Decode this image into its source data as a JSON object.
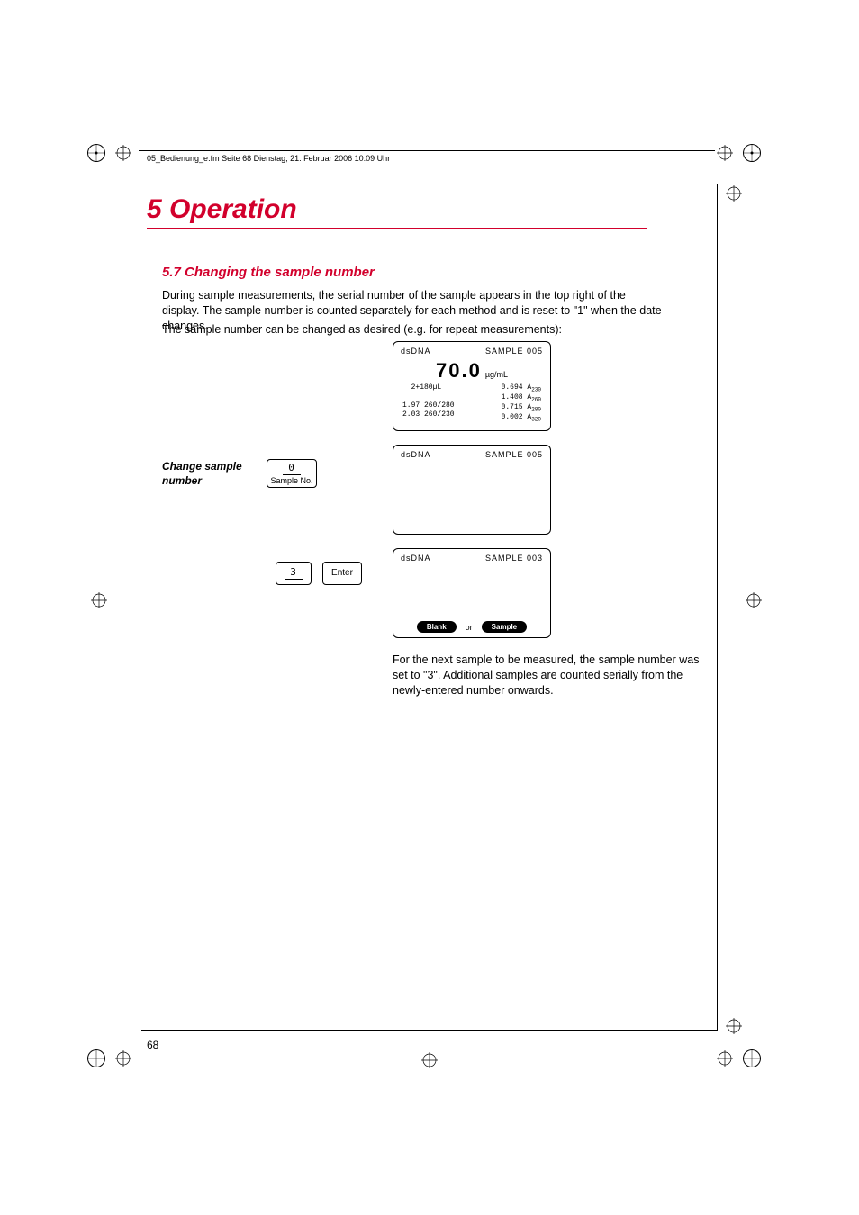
{
  "header_line": "05_Bedienung_e.fm  Seite 68  Dienstag, 21. Februar 2006  10:09 Uhr",
  "chapter_title": "5 Operation",
  "section_title": "5.7  Changing the sample number",
  "para1": "During sample measurements, the serial number of the sample appears in the top right of the display. The sample number is counted separately for each method and is reset to \"1\" when the date changes.",
  "para2": "The sample number can be changed as desired (e.g. for repeat measurements):",
  "margin_label": "Change sample number",
  "key_sample_no_digit": "0",
  "key_sample_no_label": "Sample No.",
  "key_3_digit": "3",
  "key_enter_label": "Enter",
  "screen1": {
    "method": "dsDNA",
    "sample": "SAMPLE 005",
    "value": "70.0",
    "unit": "µg/mL",
    "left_col": "  2+180µL\n\n1.97 260/280\n2.03 260/230",
    "right_lines": [
      {
        "v": "0.694",
        "a": "A",
        "s": "230"
      },
      {
        "v": "1.408",
        "a": "A",
        "s": "260"
      },
      {
        "v": "0.715",
        "a": "A",
        "s": "280"
      },
      {
        "v": "0.002",
        "a": "A",
        "s": "320"
      }
    ]
  },
  "screen2": {
    "method": "dsDNA",
    "sample": "SAMPLE 005"
  },
  "screen3": {
    "method": "dsDNA",
    "sample": "SAMPLE 003",
    "pill_blank": "Blank",
    "or": "or",
    "pill_sample": "Sample"
  },
  "caption": "For the next sample to be measured, the sample number was set to \"3\". Additional samples are counted serially from the newly-entered number onwards.",
  "page_num": "68",
  "colors": {
    "accent": "#d2002c"
  }
}
